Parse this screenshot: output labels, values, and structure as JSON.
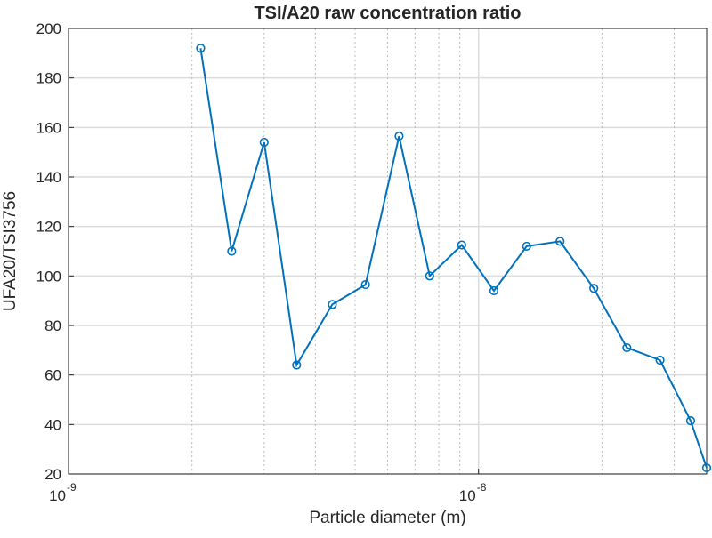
{
  "chart_data": {
    "type": "line",
    "title": "TSI/A20 raw concentration ratio",
    "xlabel": "Particle diameter (m)",
    "ylabel": "UFA20/TSI3756",
    "xscale": "log",
    "xlim": [
      1e-09,
      3.6e-08
    ],
    "ylim": [
      20,
      200
    ],
    "grid": true,
    "yticks": [
      "20",
      "40",
      "60",
      "80",
      "100",
      "120",
      "140",
      "160",
      "180",
      "200"
    ],
    "xticks": [
      {
        "base": "10",
        "exp": "-9",
        "value": 1e-09
      },
      {
        "base": "10",
        "exp": "-8",
        "value": 1e-08
      }
    ],
    "series_color": "#0072BD",
    "series": [
      {
        "x": [
          2.1e-09,
          2.5e-09,
          3e-09,
          3.6e-09,
          4.4e-09,
          5.3e-09,
          6.4e-09,
          7.6e-09,
          9.1e-09,
          1.09e-08,
          1.31e-08,
          1.58e-08,
          1.91e-08,
          2.3e-08,
          2.77e-08,
          3.29e-08,
          3.6e-08
        ],
        "y": [
          192,
          110,
          154,
          64,
          88.5,
          96.5,
          156.5,
          100,
          112.5,
          94,
          112,
          114,
          95,
          71,
          66,
          41.5,
          22.5
        ]
      }
    ]
  }
}
